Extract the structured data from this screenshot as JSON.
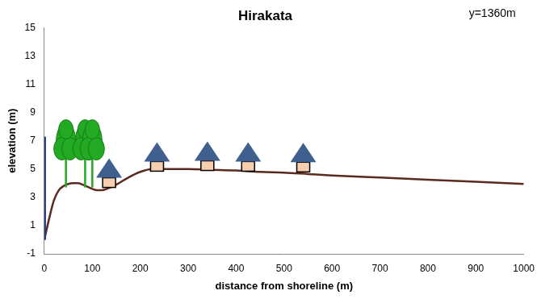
{
  "chart_data": {
    "type": "line",
    "title": "Hirakata",
    "annotation": "y=1360m",
    "x_label": "distance from shoreline (m)",
    "y_label": "elevation (m)",
    "x": [
      0,
      10,
      20,
      30,
      40,
      50,
      60,
      70,
      80,
      90,
      100,
      110,
      120,
      130,
      150,
      175,
      200,
      225,
      250,
      300,
      350,
      400,
      450,
      500,
      550,
      600,
      700,
      800,
      900,
      1000
    ],
    "values": [
      0,
      1.5,
      2.8,
      3.5,
      3.8,
      3.95,
      4.0,
      4.0,
      3.9,
      3.75,
      3.6,
      3.5,
      3.5,
      3.6,
      3.9,
      4.4,
      4.8,
      5.0,
      5.0,
      5.0,
      4.95,
      4.9,
      4.8,
      4.75,
      4.65,
      4.55,
      4.4,
      4.25,
      4.1,
      3.95
    ],
    "color": "#5a2a1e",
    "xlim": [
      0,
      1000
    ],
    "xticks": [
      0,
      100,
      200,
      300,
      400,
      500,
      600,
      700,
      800,
      900,
      1000
    ],
    "ylim": [
      -1,
      15
    ],
    "yticks": [
      -1,
      1,
      3,
      5,
      7,
      9,
      11,
      13,
      15
    ],
    "grid": false,
    "wall": {
      "x": 0,
      "bottom": 0,
      "top": 7.3,
      "color": "#1f3f8f"
    },
    "trees": {
      "x": [
        45,
        85,
        100
      ],
      "base": [
        3.7,
        3.7,
        3.7
      ],
      "color": "#22aa22"
    },
    "houses": {
      "x": [
        135,
        235,
        340,
        425,
        540
      ],
      "base": [
        3.7,
        4.85,
        4.9,
        4.85,
        4.8
      ],
      "color": "#3f5f8f"
    }
  }
}
